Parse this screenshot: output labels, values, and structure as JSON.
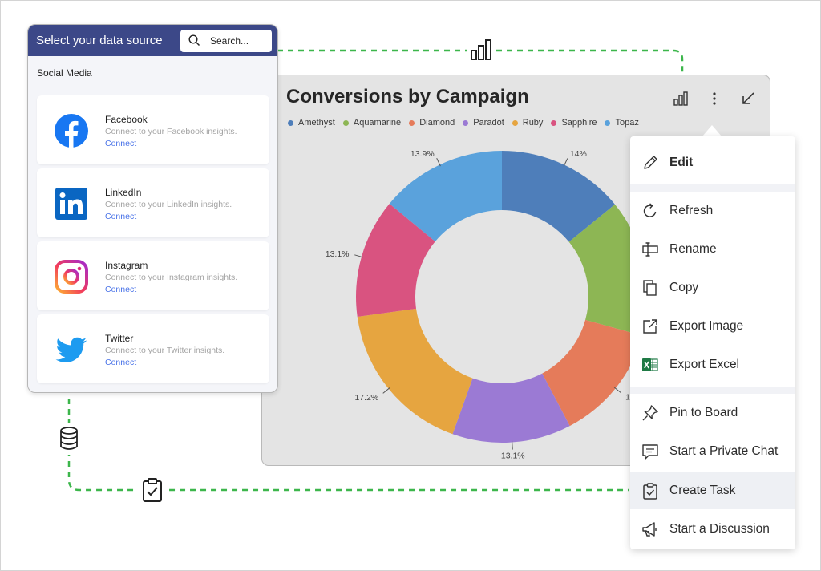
{
  "data_source": {
    "title": "Select your data source",
    "search_placeholder": "Search...",
    "section_label": "Social Media",
    "sources": [
      {
        "name": "Facebook",
        "description": "Connect to your Facebook insights.",
        "action": "Connect",
        "icon": "facebook-logo"
      },
      {
        "name": "LinkedIn",
        "description": "Connect to your LinkedIn insights.",
        "action": "Connect",
        "icon": "linkedin-logo"
      },
      {
        "name": "Instagram",
        "description": "Connect to your Instagram insights.",
        "action": "Connect",
        "icon": "instagram-logo"
      },
      {
        "name": "Twitter",
        "description": "Connect to your Twitter insights.",
        "action": "Connect",
        "icon": "twitter-logo"
      }
    ]
  },
  "chart_card": {
    "tools": [
      "bar-chart-icon",
      "more-vertical-icon",
      "collapse-arrow-icon"
    ]
  },
  "chart_data": {
    "type": "pie",
    "title": "Conversions by Campaign",
    "donut": true,
    "categories": [
      "Amethyst",
      "Aquamarine",
      "Diamond",
      "Paradot",
      "Ruby",
      "Sapphire",
      "Topaz"
    ],
    "slices": [
      {
        "name": "Amethyst",
        "value": 14,
        "label": "14%",
        "color": "#4e7eba"
      },
      {
        "name": "Aquamarine",
        "value": 15.1,
        "label": "",
        "color": "#8db654"
      },
      {
        "name": "Diamond",
        "value": 12.9,
        "label": "12.9",
        "color": "#e57b5a"
      },
      {
        "name": "Paradot",
        "value": 13.1,
        "label": "13.1%",
        "color": "#9b7ad4"
      },
      {
        "name": "Ruby",
        "value": 17.2,
        "label": "17.2%",
        "color": "#e6a540"
      },
      {
        "name": "Sapphire",
        "value": 13.1,
        "label": "13.1%",
        "color": "#d95380"
      },
      {
        "name": "Topaz",
        "value": 13.9,
        "label": "13.9%",
        "color": "#5aa2dc"
      }
    ],
    "legend": [
      {
        "name": "Amethyst",
        "color": "#4e7eba"
      },
      {
        "name": "Aquamarine",
        "color": "#8db654"
      },
      {
        "name": "Diamond",
        "color": "#e57b5a"
      },
      {
        "name": "Paradot",
        "color": "#9b7ad4"
      },
      {
        "name": "Ruby",
        "color": "#e6a540"
      },
      {
        "name": "Sapphire",
        "color": "#d95380"
      },
      {
        "name": "Topaz",
        "color": "#5aa2dc"
      }
    ],
    "legend_position": "top-left"
  },
  "menu": {
    "items": [
      {
        "label": "Edit",
        "icon": "pencil-icon"
      },
      {
        "label": "Refresh",
        "icon": "refresh-icon"
      },
      {
        "label": "Rename",
        "icon": "rename-icon"
      },
      {
        "label": "Copy",
        "icon": "copy-icon"
      },
      {
        "label": "Export Image",
        "icon": "export-image-icon"
      },
      {
        "label": "Export Excel",
        "icon": "excel-icon"
      },
      {
        "label": "Pin to Board",
        "icon": "pin-icon"
      },
      {
        "label": "Start a Private Chat",
        "icon": "chat-icon"
      },
      {
        "label": "Create Task",
        "icon": "task-icon"
      },
      {
        "label": "Start a Discussion",
        "icon": "megaphone-icon"
      }
    ],
    "highlighted": "Create Task"
  },
  "colors": {
    "header": "#3c4888",
    "link": "#4a73e8",
    "connector": "#3cb64b"
  },
  "connector_icons": [
    "bar-chart-icon",
    "database-icon",
    "clipboard-check-icon"
  ]
}
